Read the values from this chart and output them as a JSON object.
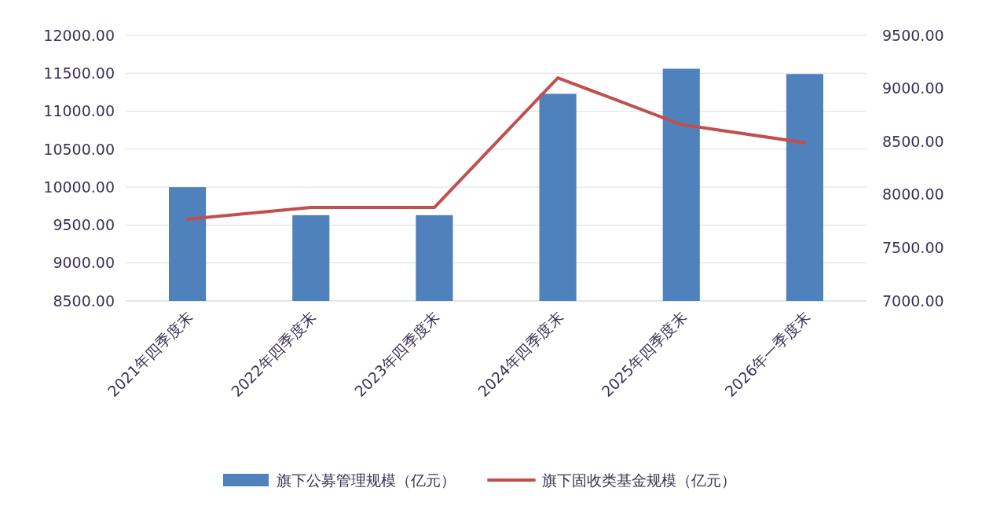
{
  "chart_data": {
    "type": "bar",
    "categories": [
      "2021年四季度末",
      "2022年四季度末",
      "2023年四季度末",
      "2024年四季度末",
      "2025年四季度末",
      "2026年一季度末"
    ],
    "series": [
      {
        "name": "旗下公募管理规模（亿元）",
        "color": "#4f81bd",
        "values": [
          10000,
          9630,
          9630,
          11230,
          11560,
          11490
        ]
      },
      {
        "name": "旗下固收类基金规模（亿元）",
        "color": "#c0504d",
        "type": "line",
        "axis": "y2",
        "values": [
          7770,
          7880,
          7880,
          9100,
          8660,
          8490
        ]
      }
    ],
    "ylim": [
      8500,
      12000
    ],
    "yticks": [
      {
        "value": 8500,
        "label": "8500.00"
      },
      {
        "value": 9000,
        "label": "9000.00"
      },
      {
        "value": 9500,
        "label": "9500.00"
      },
      {
        "value": 10000,
        "label": "10000.00"
      },
      {
        "value": 10500,
        "label": "10500.00"
      },
      {
        "value": 11000,
        "label": "11000.00"
      },
      {
        "value": 11500,
        "label": "11500.00"
      },
      {
        "value": 12000,
        "label": "12000.00"
      }
    ],
    "y2lim": [
      7000,
      9500
    ],
    "y2ticks": [
      {
        "value": 7000,
        "label": "7000.00"
      },
      {
        "value": 7500,
        "label": "7500.00"
      },
      {
        "value": 8000,
        "label": "8000.00"
      },
      {
        "value": 8500,
        "label": "8500.00"
      },
      {
        "value": 9000,
        "label": "9000.00"
      },
      {
        "value": 9500,
        "label": "9500.00"
      }
    ],
    "grid": "y",
    "legend": "bottom",
    "line_style": "solid",
    "marker": "none"
  }
}
